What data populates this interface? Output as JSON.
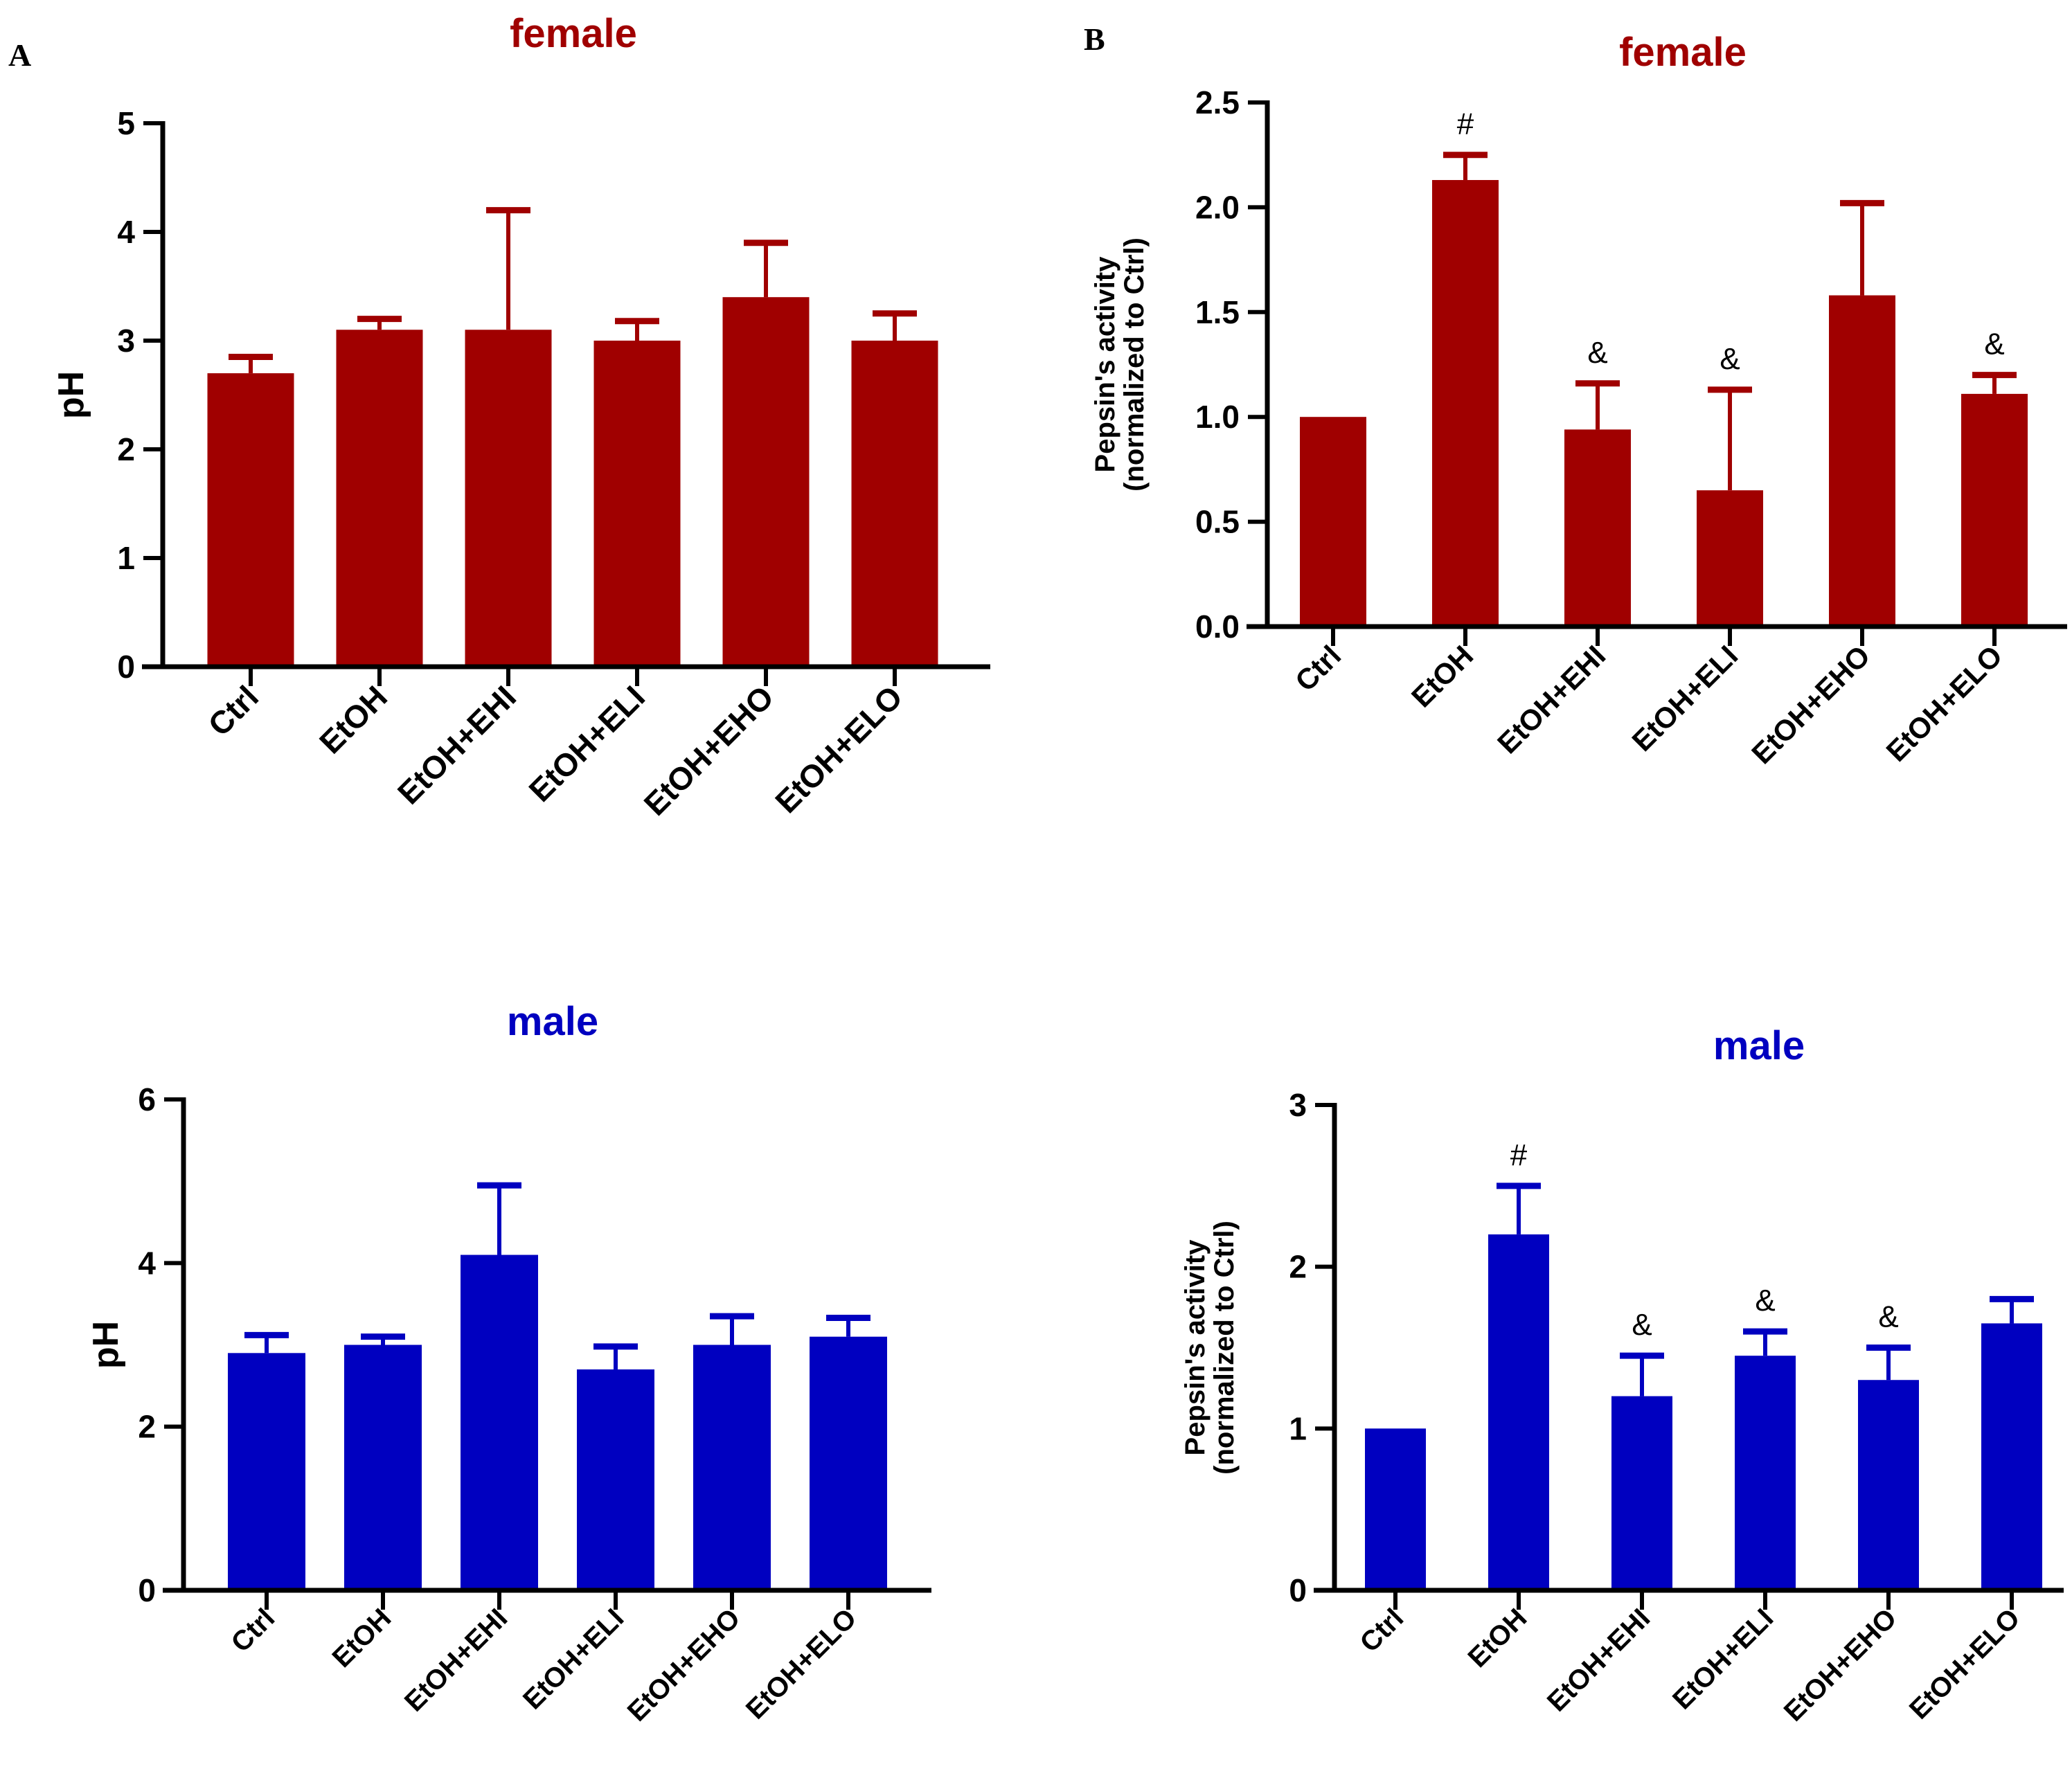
{
  "panel_labels": [
    "A",
    "B"
  ],
  "colors": {
    "female": "#A00000",
    "male": "#0000C0"
  },
  "chart_data": [
    {
      "id": "A-female",
      "type": "bar",
      "title": "female",
      "color_key": "female",
      "xlabel": "",
      "ylabel": "pH",
      "ylim": [
        0,
        5
      ],
      "yticks": [
        0,
        1,
        2,
        3,
        4,
        5
      ],
      "tick_labels": [
        "0",
        "1",
        "2",
        "3",
        "4",
        "5"
      ],
      "categories": [
        "Ctrl",
        "EtOH",
        "EtOH+EHI",
        "EtOH+ELI",
        "EtOH+EHO",
        "EtOH+ELO"
      ],
      "values": [
        2.7,
        3.1,
        3.1,
        3.0,
        3.4,
        3.0
      ],
      "error_upper": [
        2.85,
        3.2,
        4.2,
        3.18,
        3.9,
        3.25
      ],
      "annotations": [
        "",
        "",
        "",
        "",
        "",
        ""
      ]
    },
    {
      "id": "B-female",
      "type": "bar",
      "title": "female",
      "color_key": "female",
      "xlabel": "",
      "ylabel": [
        "Pepsin's activity",
        "(normalized to Ctrl)"
      ],
      "ylim": [
        0,
        2.5
      ],
      "yticks": [
        0,
        0.5,
        1.0,
        1.5,
        2.0,
        2.5
      ],
      "tick_labels": [
        "0.0",
        "0.5",
        "1.0",
        "1.5",
        "2.0",
        "2.5"
      ],
      "categories": [
        "Ctrl",
        "EtOH",
        "EtOH+EHI",
        "EtOH+ELI",
        "EtOH+EHO",
        "EtOH+ELO"
      ],
      "values": [
        1.0,
        2.13,
        0.94,
        0.65,
        1.58,
        1.11
      ],
      "error_upper": [
        1.0,
        2.25,
        1.16,
        1.13,
        2.02,
        1.2
      ],
      "annotations": [
        "",
        "#",
        "&",
        "&",
        "",
        "&"
      ]
    },
    {
      "id": "A-male",
      "type": "bar",
      "title": "male",
      "color_key": "male",
      "xlabel": "",
      "ylabel": "pH",
      "ylim": [
        0,
        6
      ],
      "yticks": [
        0,
        2,
        4,
        6
      ],
      "tick_labels": [
        "0",
        "2",
        "4",
        "6"
      ],
      "categories": [
        "Ctrl",
        "EtOH",
        "EtOH+EHI",
        "EtOH+ELI",
        "EtOH+EHO",
        "EtOH+ELO"
      ],
      "values": [
        2.9,
        3.0,
        4.1,
        2.7,
        3.0,
        3.1
      ],
      "error_upper": [
        3.12,
        3.1,
        4.95,
        2.98,
        3.35,
        3.33
      ],
      "annotations": [
        "",
        "",
        "",
        "",
        "",
        ""
      ]
    },
    {
      "id": "B-male",
      "type": "bar",
      "title": "male",
      "color_key": "male",
      "xlabel": "",
      "ylabel": [
        "Pepsin's activity",
        "(normalized to Ctrl)"
      ],
      "ylim": [
        0,
        3
      ],
      "yticks": [
        0,
        1,
        2,
        3
      ],
      "tick_labels": [
        "0",
        "1",
        "2",
        "3"
      ],
      "categories": [
        "Ctrl",
        "EtOH",
        "EtOH+EHI",
        "EtOH+ELI",
        "EtOH+EHO",
        "EtOH+ELO"
      ],
      "values": [
        1.0,
        2.2,
        1.2,
        1.45,
        1.3,
        1.65
      ],
      "error_upper": [
        1.0,
        2.5,
        1.45,
        1.6,
        1.5,
        1.8
      ],
      "annotations": [
        "",
        "#",
        "&",
        "&",
        "&",
        ""
      ]
    }
  ]
}
